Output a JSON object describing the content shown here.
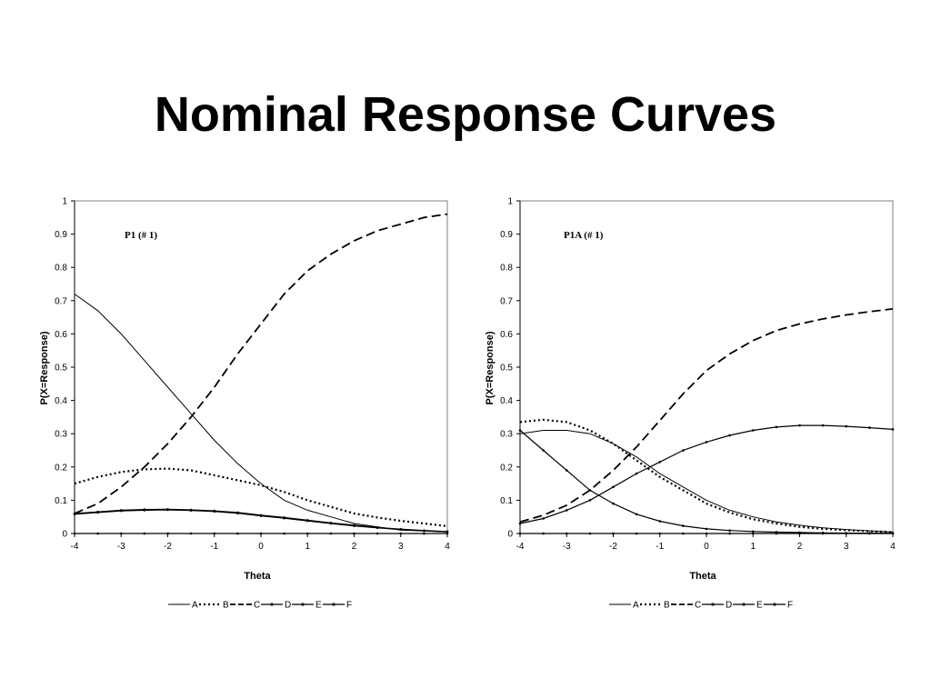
{
  "slide": {
    "title": "Nominal Response Curves"
  },
  "chart_data": [
    {
      "type": "line",
      "label": "P1 (# 1)",
      "xlabel": "Theta",
      "ylabel": "P(X=Response)",
      "xlim": [
        -4,
        4
      ],
      "ylim": [
        0,
        1
      ],
      "x_ticks": [
        -4,
        -3,
        -2,
        -1,
        0,
        1,
        2,
        3,
        4
      ],
      "y_ticks": [
        0,
        0.1,
        0.2,
        0.3,
        0.4,
        0.5,
        0.6,
        0.7,
        0.8,
        0.9,
        1
      ],
      "grid": false,
      "legend_position": "bottom",
      "x": [
        -4,
        -3.5,
        -3,
        -2.5,
        -2,
        -1.5,
        -1,
        -0.5,
        0,
        0.5,
        1,
        1.5,
        2,
        2.5,
        3,
        3.5,
        4
      ],
      "series": [
        {
          "name": "A",
          "style": "solid",
          "values": [
            0.72,
            0.67,
            0.6,
            0.52,
            0.44,
            0.36,
            0.28,
            0.21,
            0.15,
            0.1,
            0.07,
            0.05,
            0.03,
            0.02,
            0.01,
            0.008,
            0.005
          ]
        },
        {
          "name": "B",
          "style": "dotted",
          "values": [
            0.15,
            0.17,
            0.185,
            0.193,
            0.195,
            0.19,
            0.175,
            0.16,
            0.145,
            0.125,
            0.1,
            0.08,
            0.06,
            0.048,
            0.038,
            0.03,
            0.022
          ]
        },
        {
          "name": "C",
          "style": "dashed",
          "values": [
            0.06,
            0.09,
            0.14,
            0.2,
            0.27,
            0.35,
            0.44,
            0.54,
            0.63,
            0.72,
            0.79,
            0.84,
            0.88,
            0.91,
            0.93,
            0.95,
            0.96
          ]
        },
        {
          "name": "D",
          "style": "marker-line",
          "values": [
            0.06,
            0.065,
            0.07,
            0.072,
            0.073,
            0.071,
            0.068,
            0.063,
            0.055,
            0.048,
            0.04,
            0.032,
            0.025,
            0.018,
            0.013,
            0.009,
            0.006
          ]
        },
        {
          "name": "E",
          "style": "marker-line",
          "values": [
            0.058,
            0.063,
            0.068,
            0.07,
            0.071,
            0.069,
            0.066,
            0.061,
            0.053,
            0.046,
            0.038,
            0.03,
            0.023,
            0.017,
            0.012,
            0.008,
            0.005
          ]
        },
        {
          "name": "F",
          "style": "marker-line",
          "values": [
            0,
            0,
            0,
            0,
            0,
            0,
            0,
            0,
            0,
            0,
            0,
            0,
            0,
            0,
            0,
            0,
            0
          ]
        }
      ]
    },
    {
      "type": "line",
      "label": "P1A (# 1)",
      "xlabel": "Theta",
      "ylabel": "P(X=Response)",
      "xlim": [
        -4,
        4
      ],
      "ylim": [
        0,
        1
      ],
      "x_ticks": [
        -4,
        -3,
        -2,
        -1,
        0,
        1,
        2,
        3,
        4
      ],
      "y_ticks": [
        0,
        0.1,
        0.2,
        0.3,
        0.4,
        0.5,
        0.6,
        0.7,
        0.8,
        0.9,
        1
      ],
      "grid": false,
      "legend_position": "bottom",
      "x": [
        -4,
        -3.5,
        -3,
        -2.5,
        -2,
        -1.5,
        -1,
        -0.5,
        0,
        0.5,
        1,
        1.5,
        2,
        2.5,
        3,
        3.5,
        4
      ],
      "series": [
        {
          "name": "A",
          "style": "solid",
          "values": [
            0.3,
            0.31,
            0.31,
            0.3,
            0.27,
            0.23,
            0.18,
            0.14,
            0.1,
            0.07,
            0.05,
            0.035,
            0.025,
            0.017,
            0.012,
            0.008,
            0.005
          ]
        },
        {
          "name": "B",
          "style": "dotted",
          "values": [
            0.335,
            0.342,
            0.335,
            0.31,
            0.27,
            0.22,
            0.17,
            0.13,
            0.09,
            0.063,
            0.043,
            0.03,
            0.02,
            0.014,
            0.01,
            0.007,
            0.004
          ]
        },
        {
          "name": "C",
          "style": "dashed",
          "values": [
            0.035,
            0.055,
            0.085,
            0.13,
            0.19,
            0.26,
            0.34,
            0.42,
            0.49,
            0.54,
            0.58,
            0.61,
            0.63,
            0.645,
            0.657,
            0.667,
            0.675
          ]
        },
        {
          "name": "D",
          "style": "marker-line",
          "values": [
            0.03,
            0.045,
            0.07,
            0.1,
            0.14,
            0.18,
            0.215,
            0.25,
            0.275,
            0.295,
            0.31,
            0.32,
            0.325,
            0.325,
            0.322,
            0.318,
            0.313
          ]
        },
        {
          "name": "E",
          "style": "marker-line",
          "values": [
            0.31,
            0.25,
            0.19,
            0.13,
            0.09,
            0.058,
            0.037,
            0.023,
            0.014,
            0.009,
            0.006,
            0.004,
            0.003,
            0.002,
            0.001,
            0.001,
            0.001
          ]
        },
        {
          "name": "F",
          "style": "marker-line",
          "values": [
            0,
            0,
            0,
            0,
            0,
            0,
            0,
            0,
            0,
            0,
            0,
            0,
            0,
            0,
            0,
            0,
            0
          ]
        }
      ]
    }
  ]
}
